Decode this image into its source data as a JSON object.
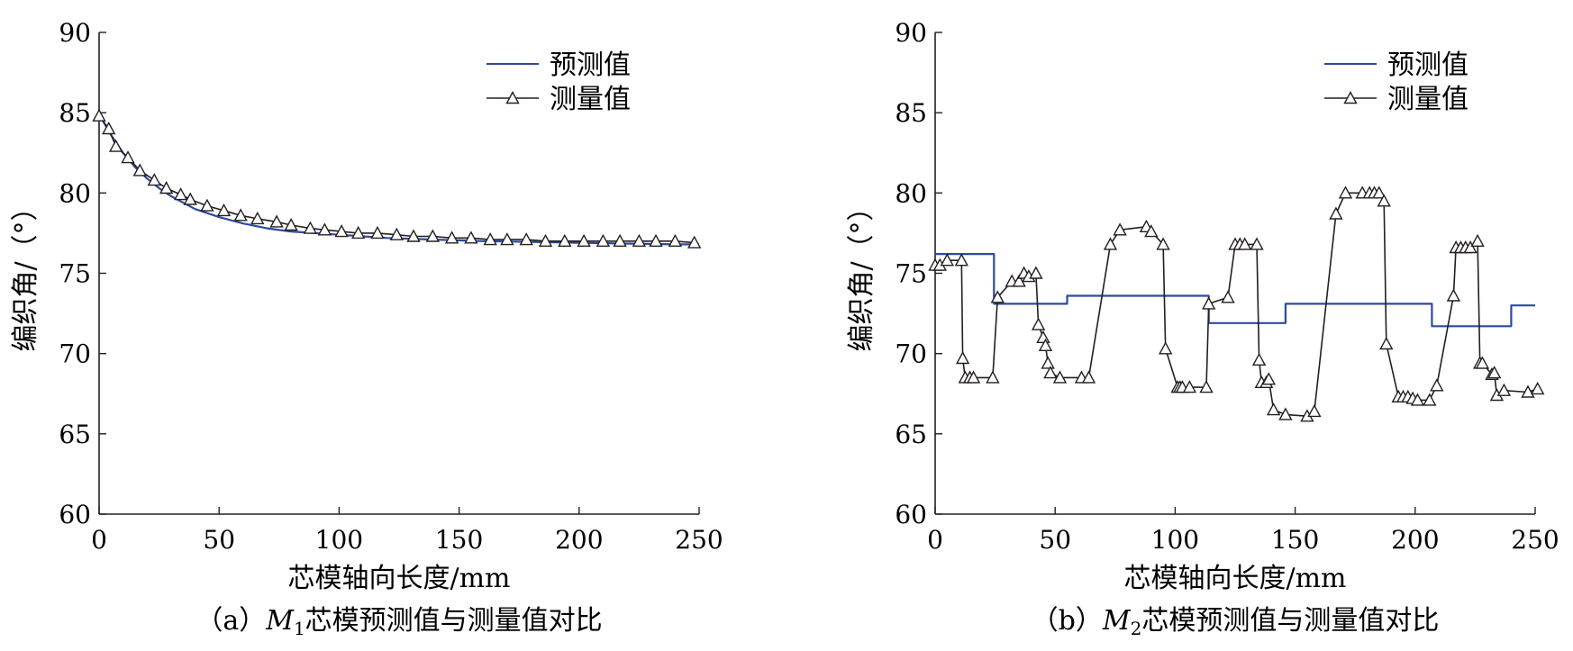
{
  "chart_data": [
    {
      "type": "line",
      "caption": {
        "prefix": "（a）",
        "var": "M",
        "sub": "1",
        "text": "芯模预测值与测量值对比"
      },
      "xlabel": "芯模轴向长度/mm",
      "ylabel": "编织角/（°）",
      "xlim": [
        0,
        250
      ],
      "ylim": [
        60,
        90
      ],
      "xticks": [
        "0",
        "50",
        "100",
        "150",
        "200",
        "250"
      ],
      "yticks": [
        "60",
        "65",
        "70",
        "75",
        "80",
        "85",
        "90"
      ],
      "legend_position": "top-right",
      "legend": [
        "预测值",
        "测量值"
      ],
      "series": [
        {
          "name": "预测值",
          "marker": "none",
          "color": "#2e4a9e",
          "x": [
            0,
            5,
            10,
            15,
            20,
            25,
            30,
            40,
            50,
            60,
            70,
            80,
            90,
            100,
            120,
            140,
            160,
            180,
            200,
            220,
            240,
            250
          ],
          "y": [
            84.9,
            83.6,
            82.5,
            81.6,
            80.9,
            80.3,
            79.8,
            79.0,
            78.5,
            78.1,
            77.8,
            77.6,
            77.5,
            77.4,
            77.2,
            77.1,
            77.0,
            76.95,
            76.9,
            76.85,
            76.8,
            76.8
          ]
        },
        {
          "name": "测量值",
          "marker": "triangle",
          "color": "#231f20",
          "x": [
            0,
            4,
            7,
            12,
            17,
            23,
            28,
            34,
            38,
            45,
            52,
            59,
            66,
            74,
            80,
            88,
            94,
            101,
            108,
            116,
            124,
            131,
            139,
            147,
            155,
            163,
            170,
            178,
            186,
            194,
            202,
            210,
            217,
            225,
            232,
            240,
            248
          ],
          "y": [
            84.8,
            84.0,
            82.9,
            82.2,
            81.4,
            80.8,
            80.3,
            79.9,
            79.6,
            79.2,
            78.9,
            78.6,
            78.4,
            78.2,
            78.0,
            77.8,
            77.7,
            77.6,
            77.5,
            77.5,
            77.4,
            77.3,
            77.3,
            77.2,
            77.2,
            77.1,
            77.1,
            77.1,
            77.0,
            77.0,
            77.0,
            77.0,
            77.0,
            77.0,
            77.0,
            77.0,
            76.9
          ]
        }
      ]
    },
    {
      "type": "line",
      "caption": {
        "prefix": "（b）",
        "var": "M",
        "sub": "2",
        "text": "芯模预测值与测量值对比"
      },
      "xlabel": "芯模轴向长度/mm",
      "ylabel": "编织角/（°）",
      "xlim": [
        0,
        250
      ],
      "ylim": [
        60,
        90
      ],
      "xticks": [
        "0",
        "50",
        "100",
        "150",
        "200",
        "250"
      ],
      "yticks": [
        "60",
        "65",
        "70",
        "75",
        "80",
        "85",
        "90"
      ],
      "legend_position": "top-right",
      "legend": [
        "预测值",
        "测量值"
      ],
      "series": [
        {
          "name": "预测值",
          "marker": "none",
          "color": "#2e4a9e",
          "x": [
            0,
            24.5,
            24.5,
            55,
            55,
            114,
            114,
            146,
            146,
            207,
            207,
            240,
            240,
            250
          ],
          "y": [
            76.2,
            76.2,
            73.1,
            73.1,
            73.6,
            73.6,
            71.9,
            71.9,
            73.1,
            73.1,
            71.7,
            71.7,
            73.0,
            73.0
          ]
        },
        {
          "name": "测量值",
          "marker": "triangle",
          "color": "#231f20",
          "x": [
            0,
            2,
            5,
            11,
            11.5,
            12.5,
            14.5,
            16,
            24,
            26,
            32,
            35,
            37,
            39,
            42,
            43,
            45,
            46,
            47,
            48,
            52,
            61,
            64,
            73,
            77,
            88,
            90,
            95,
            96,
            101,
            102,
            103,
            106,
            113,
            114,
            122,
            125,
            127,
            129,
            134,
            135,
            136,
            138,
            139,
            141,
            146,
            155,
            158,
            167,
            171,
            178,
            181,
            183,
            185,
            187,
            188,
            193,
            195,
            197,
            199,
            201,
            206,
            209,
            216,
            217,
            219,
            221,
            223,
            226,
            227,
            228,
            232,
            233,
            234,
            237,
            247,
            251
          ],
          "y": [
            75.5,
            75.5,
            75.8,
            75.8,
            69.7,
            68.5,
            68.5,
            68.5,
            68.5,
            73.5,
            74.5,
            74.5,
            75.0,
            74.8,
            75.0,
            71.8,
            71.0,
            70.5,
            69.4,
            68.8,
            68.5,
            68.5,
            68.5,
            76.8,
            77.7,
            77.9,
            77.6,
            76.8,
            70.3,
            67.9,
            67.9,
            67.9,
            67.9,
            67.9,
            73.1,
            73.5,
            76.8,
            76.8,
            76.8,
            76.8,
            69.6,
            68.2,
            68.2,
            68.4,
            66.5,
            66.2,
            66.1,
            66.4,
            78.7,
            80.0,
            80.0,
            80.0,
            80.0,
            80.0,
            79.5,
            70.6,
            67.3,
            67.3,
            67.3,
            67.2,
            67.1,
            67.1,
            68.0,
            73.6,
            76.6,
            76.6,
            76.6,
            76.6,
            77.0,
            69.4,
            69.4,
            68.7,
            68.8,
            67.4,
            67.7,
            67.6,
            67.8
          ]
        }
      ]
    }
  ]
}
